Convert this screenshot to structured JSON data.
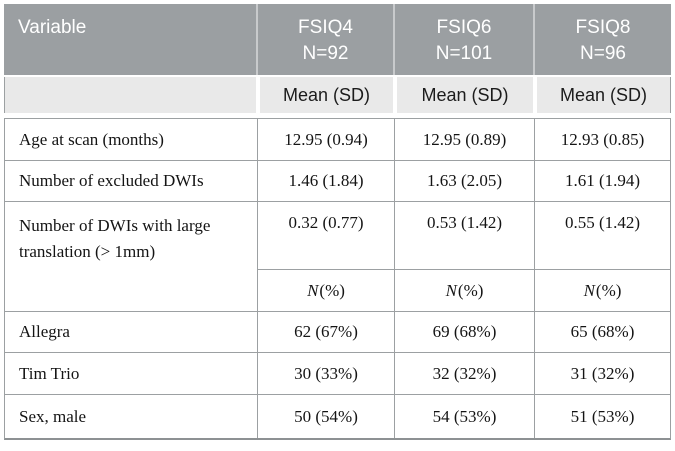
{
  "table": {
    "colors": {
      "header_bg": "#9b9fa2",
      "header_text": "#ffffff",
      "subheader_bg": "#e9e9e9",
      "border": "#9ca0a2",
      "bottom_border": "#8d9193",
      "body_text": "#141414"
    },
    "header": {
      "variable": "Variable",
      "groups": [
        {
          "name": "FSIQ4",
          "n": "N=92"
        },
        {
          "name": "FSIQ6",
          "n": "N=101"
        },
        {
          "name": "FSIQ8",
          "n": "N=96"
        }
      ]
    },
    "subheader": {
      "labels": [
        "Mean (SD)",
        "Mean (SD)",
        "Mean (SD)"
      ]
    },
    "mean_rows": [
      {
        "label": "Age at scan (months)",
        "values": [
          "12.95 (0.94)",
          "12.95 (0.89)",
          "12.93 (0.85)"
        ]
      },
      {
        "label": "Number of excluded DWIs",
        "values": [
          "1.46 (1.84)",
          "1.63 (2.05)",
          "1.61 (1.94)"
        ]
      },
      {
        "label": "Number of DWIs with large translation (> 1mm)",
        "values": [
          "0.32 (0.77)",
          "0.53 (1.42)",
          "0.55 (1.42)"
        ]
      }
    ],
    "count_header": {
      "n": "N",
      "pct": "(%)"
    },
    "count_rows": [
      {
        "label": "Allegra",
        "values": [
          "62 (67%)",
          "69 (68%)",
          "65 (68%)"
        ]
      },
      {
        "label": "Tim Trio",
        "values": [
          "30 (33%)",
          "32 (32%)",
          "31 (32%)"
        ]
      },
      {
        "label": "Sex, male",
        "values": [
          "50 (54%)",
          "54 (53%)",
          "51 (53%)"
        ]
      }
    ]
  }
}
